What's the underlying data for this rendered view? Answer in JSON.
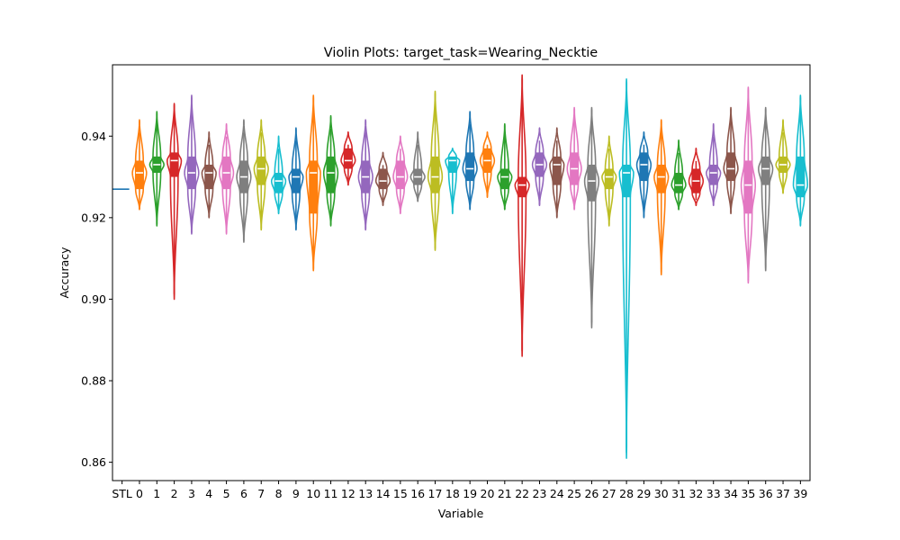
{
  "chart_data": {
    "type": "violin",
    "title": "Violin Plots: target_task=Wearing_Necktie",
    "xlabel": "Variable",
    "ylabel": "Accuracy",
    "ylim": [
      0.8555,
      0.9575
    ],
    "yticks": [
      0.86,
      0.88,
      0.9,
      0.92,
      0.94
    ],
    "ytick_labels": [
      "0.86",
      "0.88",
      "0.90",
      "0.92",
      "0.94"
    ],
    "categories": [
      "STL",
      "0",
      "1",
      "2",
      "3",
      "4",
      "5",
      "6",
      "7",
      "8",
      "9",
      "10",
      "11",
      "12",
      "13",
      "14",
      "15",
      "16",
      "17",
      "18",
      "19",
      "20",
      "21",
      "22",
      "23",
      "24",
      "25",
      "26",
      "27",
      "28",
      "29",
      "30",
      "31",
      "32",
      "33",
      "34",
      "35",
      "36",
      "37",
      "39"
    ],
    "stl_baseline": 0.927,
    "colors": [
      "#ff7f0e",
      "#2ca02c",
      "#d62728",
      "#9467bd",
      "#8c564b",
      "#e377c2",
      "#7f7f7f",
      "#bcbd22",
      "#17becf",
      "#1f77b4"
    ],
    "stl_color": "#1f77b4",
    "series": [
      {
        "name": "0",
        "min": 0.922,
        "q1": 0.927,
        "median": 0.931,
        "q3": 0.934,
        "max": 0.944
      },
      {
        "name": "1",
        "min": 0.918,
        "q1": 0.931,
        "median": 0.933,
        "q3": 0.935,
        "max": 0.946
      },
      {
        "name": "2",
        "min": 0.9,
        "q1": 0.93,
        "median": 0.934,
        "q3": 0.936,
        "max": 0.948
      },
      {
        "name": "3",
        "min": 0.916,
        "q1": 0.927,
        "median": 0.931,
        "q3": 0.935,
        "max": 0.95
      },
      {
        "name": "4",
        "min": 0.92,
        "q1": 0.927,
        "median": 0.931,
        "q3": 0.933,
        "max": 0.941
      },
      {
        "name": "5",
        "min": 0.916,
        "q1": 0.927,
        "median": 0.931,
        "q3": 0.935,
        "max": 0.943
      },
      {
        "name": "6",
        "min": 0.914,
        "q1": 0.926,
        "median": 0.93,
        "q3": 0.934,
        "max": 0.944
      },
      {
        "name": "7",
        "min": 0.917,
        "q1": 0.928,
        "median": 0.932,
        "q3": 0.935,
        "max": 0.944
      },
      {
        "name": "8",
        "min": 0.921,
        "q1": 0.926,
        "median": 0.929,
        "q3": 0.931,
        "max": 0.94
      },
      {
        "name": "9",
        "min": 0.917,
        "q1": 0.926,
        "median": 0.93,
        "q3": 0.932,
        "max": 0.942
      },
      {
        "name": "10",
        "min": 0.907,
        "q1": 0.921,
        "median": 0.931,
        "q3": 0.934,
        "max": 0.95
      },
      {
        "name": "11",
        "min": 0.918,
        "q1": 0.926,
        "median": 0.931,
        "q3": 0.935,
        "max": 0.945
      },
      {
        "name": "12",
        "min": 0.928,
        "q1": 0.932,
        "median": 0.934,
        "q3": 0.937,
        "max": 0.941
      },
      {
        "name": "13",
        "min": 0.917,
        "q1": 0.926,
        "median": 0.93,
        "q3": 0.934,
        "max": 0.944
      },
      {
        "name": "14",
        "min": 0.923,
        "q1": 0.927,
        "median": 0.929,
        "q3": 0.932,
        "max": 0.936
      },
      {
        "name": "15",
        "min": 0.921,
        "q1": 0.927,
        "median": 0.93,
        "q3": 0.934,
        "max": 0.94
      },
      {
        "name": "16",
        "min": 0.924,
        "q1": 0.928,
        "median": 0.93,
        "q3": 0.932,
        "max": 0.941
      },
      {
        "name": "17",
        "min": 0.912,
        "q1": 0.926,
        "median": 0.93,
        "q3": 0.935,
        "max": 0.951
      },
      {
        "name": "18",
        "min": 0.921,
        "q1": 0.931,
        "median": 0.934,
        "q3": 0.935,
        "max": 0.937
      },
      {
        "name": "19",
        "min": 0.922,
        "q1": 0.929,
        "median": 0.932,
        "q3": 0.936,
        "max": 0.946
      },
      {
        "name": "20",
        "min": 0.925,
        "q1": 0.931,
        "median": 0.934,
        "q3": 0.937,
        "max": 0.941
      },
      {
        "name": "21",
        "min": 0.922,
        "q1": 0.927,
        "median": 0.93,
        "q3": 0.932,
        "max": 0.943
      },
      {
        "name": "22",
        "min": 0.886,
        "q1": 0.925,
        "median": 0.928,
        "q3": 0.93,
        "max": 0.955
      },
      {
        "name": "23",
        "min": 0.923,
        "q1": 0.93,
        "median": 0.933,
        "q3": 0.936,
        "max": 0.942
      },
      {
        "name": "24",
        "min": 0.92,
        "q1": 0.928,
        "median": 0.933,
        "q3": 0.935,
        "max": 0.942
      },
      {
        "name": "25",
        "min": 0.922,
        "q1": 0.928,
        "median": 0.932,
        "q3": 0.936,
        "max": 0.947
      },
      {
        "name": "26",
        "min": 0.893,
        "q1": 0.924,
        "median": 0.929,
        "q3": 0.933,
        "max": 0.947
      },
      {
        "name": "27",
        "min": 0.918,
        "q1": 0.927,
        "median": 0.93,
        "q3": 0.932,
        "max": 0.94
      },
      {
        "name": "28",
        "min": 0.861,
        "q1": 0.925,
        "median": 0.931,
        "q3": 0.933,
        "max": 0.954
      },
      {
        "name": "29",
        "min": 0.92,
        "q1": 0.929,
        "median": 0.933,
        "q3": 0.936,
        "max": 0.941
      },
      {
        "name": "30",
        "min": 0.906,
        "q1": 0.926,
        "median": 0.93,
        "q3": 0.933,
        "max": 0.944
      },
      {
        "name": "31",
        "min": 0.922,
        "q1": 0.926,
        "median": 0.928,
        "q3": 0.931,
        "max": 0.939
      },
      {
        "name": "32",
        "min": 0.923,
        "q1": 0.926,
        "median": 0.929,
        "q3": 0.932,
        "max": 0.937
      },
      {
        "name": "33",
        "min": 0.923,
        "q1": 0.928,
        "median": 0.931,
        "q3": 0.933,
        "max": 0.943
      },
      {
        "name": "34",
        "min": 0.921,
        "q1": 0.929,
        "median": 0.932,
        "q3": 0.936,
        "max": 0.947
      },
      {
        "name": "35",
        "min": 0.904,
        "q1": 0.921,
        "median": 0.928,
        "q3": 0.934,
        "max": 0.952
      },
      {
        "name": "36",
        "min": 0.907,
        "q1": 0.928,
        "median": 0.932,
        "q3": 0.935,
        "max": 0.947
      },
      {
        "name": "37",
        "min": 0.926,
        "q1": 0.931,
        "median": 0.933,
        "q3": 0.935,
        "max": 0.944
      },
      {
        "name": "39",
        "min": 0.918,
        "q1": 0.925,
        "median": 0.928,
        "q3": 0.935,
        "max": 0.95
      }
    ]
  }
}
